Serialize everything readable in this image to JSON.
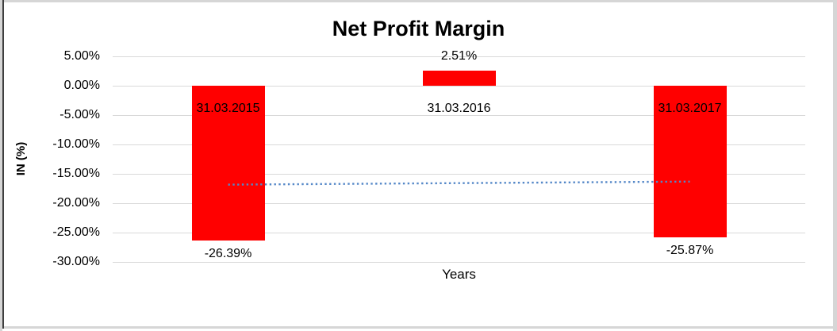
{
  "frame": {
    "background": "#FFFFFF",
    "border_gray": "#D6D6D6",
    "border_dark": "#3F3F3F"
  },
  "chart_data": {
    "type": "bar",
    "title": "Net Profit Margin",
    "xlabel": "Years",
    "ylabel": "IN (%)",
    "categories": [
      "31.03.2015",
      "31.03.2016",
      "31.03.2017"
    ],
    "values": [
      -26.39,
      2.51,
      -25.87
    ],
    "data_labels": [
      "-26.39%",
      "2.51%",
      "-25.87%"
    ],
    "ylim": [
      -30,
      5
    ],
    "ytick_values": [
      5,
      0,
      -5,
      -10,
      -15,
      -20,
      -25,
      -30
    ],
    "ytick_labels": [
      "5.00%",
      "0.00%",
      "-5.00%",
      "-10.00%",
      "-15.00%",
      "-20.00%",
      "-25.00%",
      "-30.00%"
    ],
    "grid": true,
    "legend": false,
    "colors": {
      "bar": "#FF0000",
      "gridline": "#D9D9D9",
      "trendline": "#5588C8",
      "text": "#000000"
    },
    "trendline": {
      "type": "linear",
      "style": "dotted",
      "values": [
        -16.84,
        -16.32
      ]
    }
  }
}
